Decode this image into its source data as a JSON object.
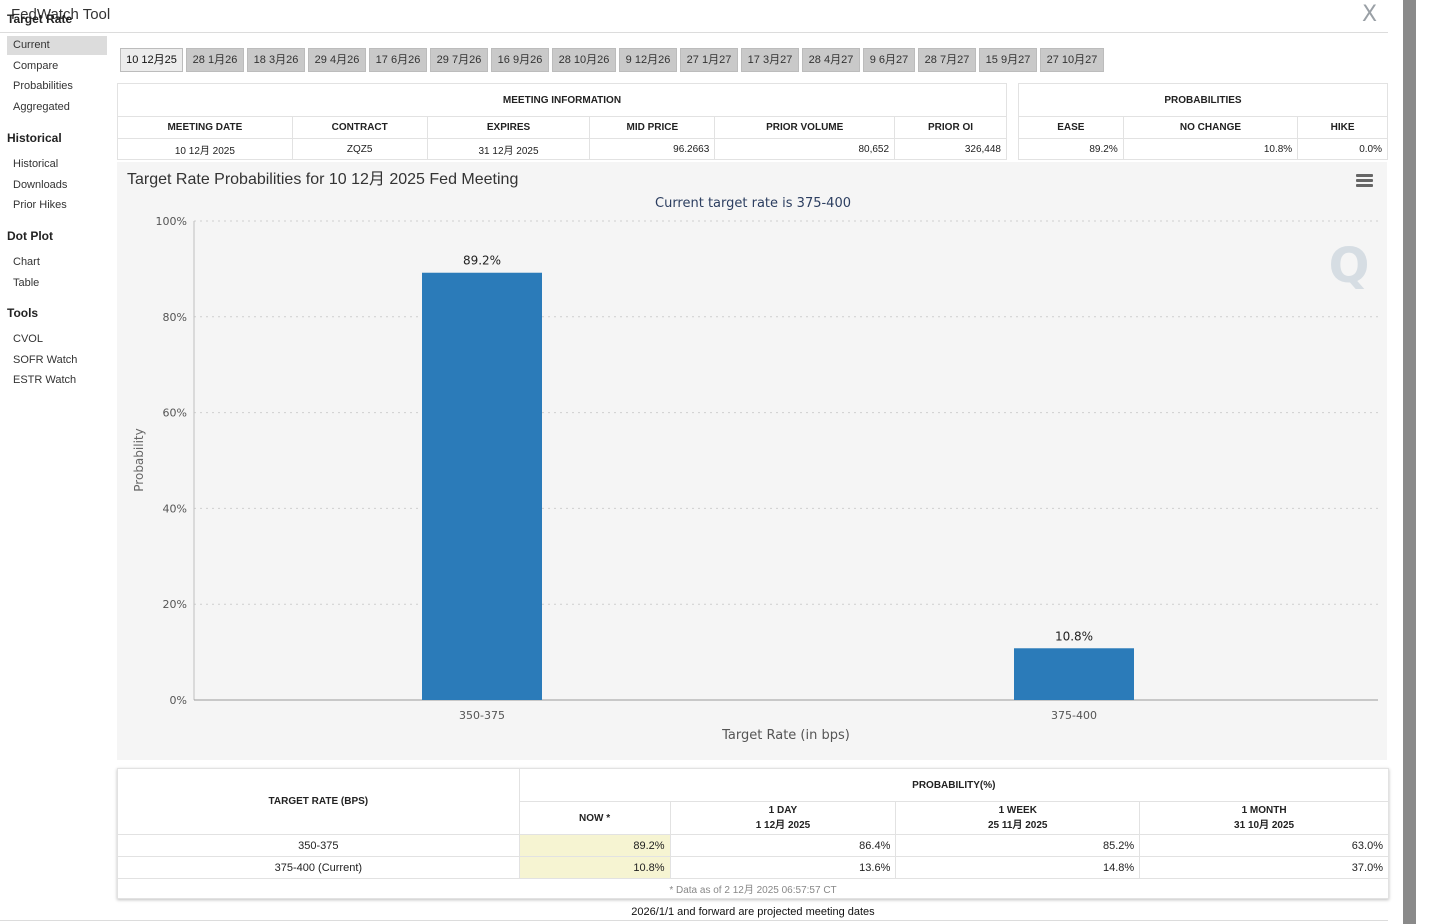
{
  "app": {
    "title": "FedWatch Tool",
    "close_glyph": "X"
  },
  "sidebar": {
    "groups": [
      {
        "label": "Target Rate",
        "items": [
          "Current",
          "Compare",
          "Probabilities",
          "Aggregated"
        ]
      },
      {
        "label": "Historical",
        "items": [
          "Historical",
          "Downloads",
          "Prior Hikes"
        ]
      },
      {
        "label": "Dot Plot",
        "items": [
          "Chart",
          "Table"
        ]
      },
      {
        "label": "Tools",
        "items": [
          "CVOL",
          "SOFR Watch",
          "ESTR Watch"
        ]
      }
    ],
    "active_item": "Current"
  },
  "meeting_tabs": [
    "10 12月25",
    "28 1月26",
    "18 3月26",
    "29 4月26",
    "17 6月26",
    "29 7月26",
    "16 9月26",
    "28 10月26",
    "9 12月26",
    "27 1月27",
    "17 3月27",
    "28 4月27",
    "9 6月27",
    "28 7月27",
    "15 9月27",
    "27 10月27"
  ],
  "meeting_info": {
    "title": "MEETING INFORMATION",
    "headers": [
      "MEETING DATE",
      "CONTRACT",
      "EXPIRES",
      "MID PRICE",
      "PRIOR VOLUME",
      "PRIOR OI"
    ],
    "values": [
      "10 12月 2025",
      "ZQZ5",
      "31 12月 2025",
      "96.2663",
      "80,652",
      "326,448"
    ]
  },
  "probabilities_summary": {
    "title": "PROBABILITIES",
    "headers": [
      "EASE",
      "NO CHANGE",
      "HIKE"
    ],
    "values": [
      "89.2%",
      "10.8%",
      "0.0%"
    ]
  },
  "chart_data": {
    "type": "bar",
    "title": "Target Rate Probabilities for 10 12月 2025 Fed Meeting",
    "subtitle": "Current target rate is 375-400",
    "xlabel": "Target Rate (in bps)",
    "ylabel": "Probability",
    "categories": [
      "350-375",
      "375-400"
    ],
    "values": [
      89.2,
      10.8
    ],
    "data_labels": [
      "89.2%",
      "10.8%"
    ],
    "ylim": [
      0,
      100
    ],
    "yticks": [
      "0%",
      "20%",
      "40%",
      "60%",
      "80%",
      "100%"
    ],
    "ytick_values": [
      0,
      20,
      40,
      60,
      80,
      100
    ],
    "grid": true,
    "bar_color": "#2b7bb9",
    "watermark": "Q"
  },
  "prob_table": {
    "col_target": "TARGET RATE (BPS)",
    "col_group": "PROBABILITY(%)",
    "col_now": "NOW *",
    "col_day": "1 DAY",
    "col_day_date": "1 12月 2025",
    "col_week": "1 WEEK",
    "col_week_date": "25 11月 2025",
    "col_month": "1 MONTH",
    "col_month_date": "31 10月 2025",
    "rows": [
      {
        "rate": "350-375",
        "now": "89.2%",
        "day": "86.4%",
        "week": "85.2%",
        "month": "63.0%"
      },
      {
        "rate": "375-400 (Current)",
        "now": "10.8%",
        "day": "13.6%",
        "week": "14.8%",
        "month": "37.0%"
      }
    ],
    "data_as_of": "* Data as of 2 12月 2025 06:57:57 CT"
  },
  "footer_note": "2026/1/1 and forward are projected meeting dates"
}
